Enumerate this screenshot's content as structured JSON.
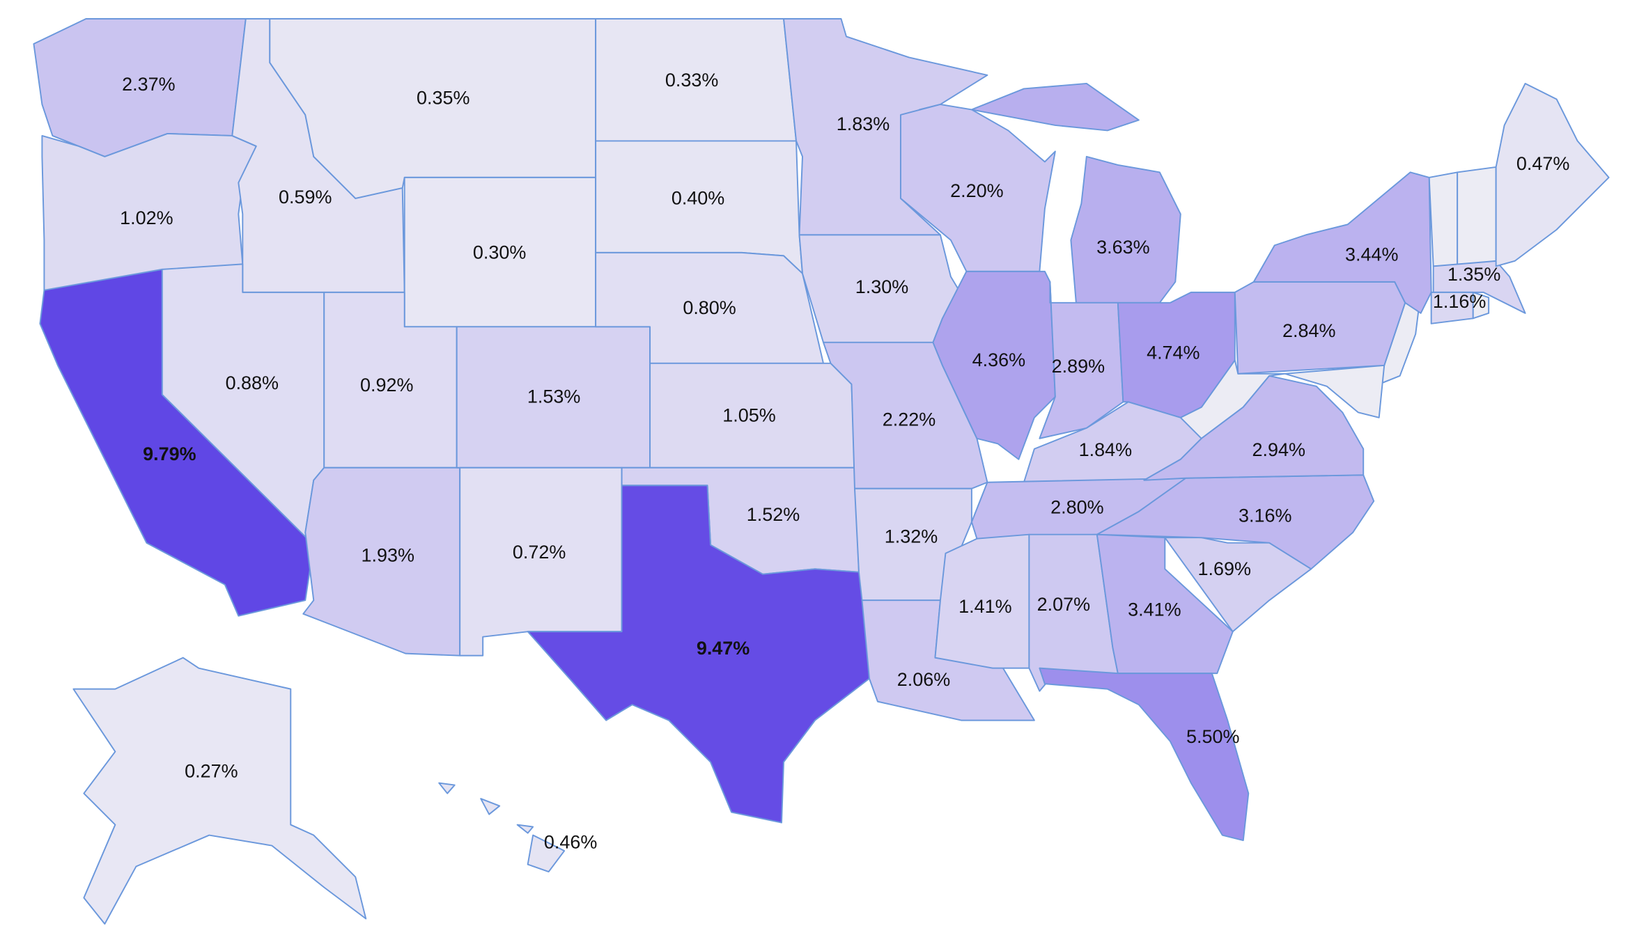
{
  "chart_data": {
    "type": "choropleth",
    "values": [
      2.37,
      1.02,
      9.79,
      0.59,
      0.88,
      0.35,
      0.3,
      0.92,
      1.93,
      1.53,
      0.72,
      0.33,
      0.4,
      0.8,
      1.05,
      1.52,
      9.47,
      1.83,
      1.3,
      2.22,
      1.32,
      2.06,
      2.2,
      4.36,
      3.63,
      2.89,
      4.74,
      1.84,
      2.8,
      1.41,
      2.07,
      3.41,
      5.5,
      1.69,
      3.16,
      2.94,
      2.84,
      3.44,
      1.35,
      1.16,
      0.47,
      0.27,
      0.46
    ],
    "value_labels": [
      "2.37%",
      "1.02%",
      "9.79%",
      "0.59%",
      "0.88%",
      "0.35%",
      "0.30%",
      "0.92%",
      "1.93%",
      "1.53%",
      "0.72%",
      "0.33%",
      "0.40%",
      "0.80%",
      "1.05%",
      "1.52%",
      "9.47%",
      "1.83%",
      "1.30%",
      "2.22%",
      "1.32%",
      "2.06%",
      "2.20%",
      "4.36%",
      "3.63%",
      "2.89%",
      "4.74%",
      "1.84%",
      "2.80%",
      "1.41%",
      "2.07%",
      "3.41%",
      "5.50%",
      "1.69%",
      "3.16%",
      "2.94%",
      "2.84%",
      "3.44%",
      "1.35%",
      "1.16%",
      "0.47%",
      "0.27%",
      "0.46%"
    ],
    "color": "#6047e5",
    "low_color": "#ececf4"
  }
}
